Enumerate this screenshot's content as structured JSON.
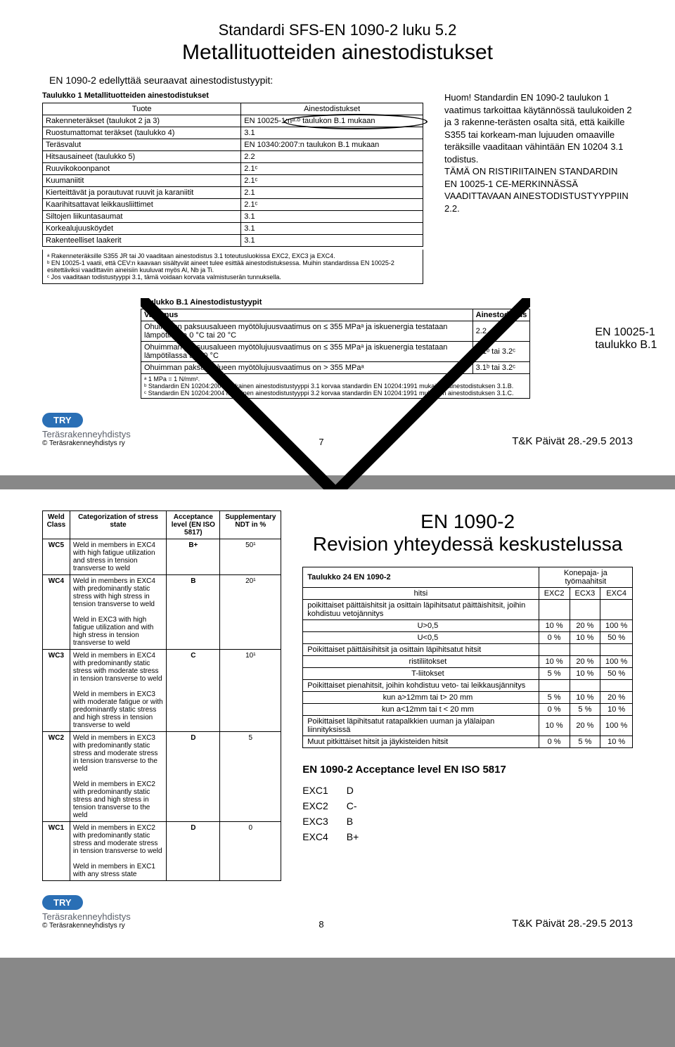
{
  "slide1": {
    "h1": "Standardi SFS-EN 1090-2 luku 5.2",
    "h2": "Metallituotteiden ainestodistukset",
    "subtitle": "EN 1090-2 edellyttää seuraavat ainestodistustyypit:",
    "t1_caption": "Taulukko 1 Metallituotteiden ainestodistukset",
    "t1_hdr1": "Tuote",
    "t1_hdr2": "Ainestodistukset",
    "t1_rows": [
      [
        "Rakenneteräkset (taulukot 2 ja 3)",
        "EN 10025-1:nᵃ·ᵇ taulukon B.1 mukaan"
      ],
      [
        "Ruostumattomat teräkset (taulukko 4)",
        "3.1"
      ],
      [
        "Teräsvalut",
        "EN 10340:2007:n taulukon B.1 mukaan"
      ],
      [
        "Hitsausaineet (taulukko 5)",
        "2.2"
      ],
      [
        "Ruuvikokoonpanot",
        "2.1ᶜ"
      ],
      [
        "Kuumaniitit",
        "2.1ᶜ"
      ],
      [
        "Kierteittävät ja porautuvat ruuvit ja karaniitit",
        "2.1"
      ],
      [
        "Kaarihitsattavat leikkausliittimet",
        "2.1ᶜ"
      ],
      [
        "Siltojen liikuntasaumat",
        "3.1"
      ],
      [
        "Korkealujuusköydet",
        "3.1"
      ],
      [
        "Rakenteelliset laakerit",
        "3.1"
      ]
    ],
    "ftnotes": "ᵃ Rakenneteräksille S355 JR tai J0 vaaditaan ainestodistus 3.1 toteutusluokissa EXC2, EXC3 ja EXC4.\nᵇ EN 10025-1 vaatii, että CEV:n kaavaan sisältyvät aineet tulee esittää ainestodistuksessa. Muihin standardissa EN 10025-2 esitettäviksi vaadittaviin aineisiin kuuluvat myös Al, Nb ja Ti.\nᶜ Jos vaaditaan todistustyyppi 3.1, tämä voidaan korvata valmistuserän tunnuksella.",
    "note1": "Huom! Standardin EN 1090-2 taulukon 1 vaatimus tarkoittaa käytännössä taulukoiden 2 ja 3 rakenne-terästen osalta sitä, että kaikille S355 tai korkeam-man lujuuden omaaville teräksille vaaditaan vähintään EN 10204 3.1 todistus.\nTÄMÄ ON RISTIRIITAINEN STANDARDIN EN 10025-1 CE-MERKINNÄSSÄ VAADITTAVAAN AINESTODISTUSTYYPPIIN 2.2.",
    "t2_caption": "Taulukko B.1 Ainestodistustyypit",
    "t2_hdr1": "Vaatimus",
    "t2_hdr2": "Ainestodistus",
    "t2_rows": [
      [
        "Ohuimman paksuusalueen myötölujuusvaatimus on ≤ 355 MPaᵃ ja iskuenergia testataan lämpötilassa 0 °C tai 20 °C",
        "2.2"
      ],
      [
        "Ohuimman paksuusalueen myötölujuusvaatimus on ≤ 355 MPaᵃ ja iskuenergia testataan lämpötilassa alle 0 °C",
        "3.1ᵇ tai 3.2ᶜ"
      ],
      [
        "Ohuimman paksuusalueen myötölujuusvaatimus on > 355 MPaᵃ",
        "3.1ᵇ tai 3.2ᶜ"
      ]
    ],
    "t2_ft": "ᵃ 1 MPa = 1 N/mm².\nᵇ Standardin EN 10204:2004 mukainen ainestodistustyyppi 3.1 korvaa standardin EN 10204:1991 mukaisen ainestodistuksen 3.1.B.\nᶜ Standardin EN 10204:2004 mukainen ainestodistustyyppi 3.2 korvaa standardin EN 10204:1991 mukaisen ainestodistuksen 3.1.C.",
    "lbl_en10025": "EN 10025-1\ntaulukko B.1",
    "page": "7",
    "date": "T&K Päivät 28.-29.5 2013",
    "try": "© Teräsrakenneyhdistys ry",
    "trybrand": "TRY",
    "trysub": "Teräsrakenneyhdistys"
  },
  "slide2": {
    "wtbl_h1": "Weld Class",
    "wtbl_h2": "Categorization of stress state",
    "wtbl_h3": "Acceptance level (EN ISO 5817)",
    "wtbl_h4": "Supplementary NDT in %",
    "wtbl": [
      [
        "WC5",
        "Weld in members in EXC4 with high fatigue utilization and stress in tension transverse to weld",
        "B+",
        "50¹"
      ],
      [
        "WC4",
        "Weld in members in EXC4 with predominantly static stress with high stress in tension transverse to weld\n\nWeld in EXC3 with high fatigue utilization and with high stress in tension transverse to weld",
        "B",
        "20¹"
      ],
      [
        "WC3",
        "Weld in members in EXC4 with predominantly static stress with moderate stress in tension transverse to weld\n\nWeld in members in EXC3 with moderate fatigue or with predominantly static stress and high stress in tension transverse to weld",
        "C",
        "10¹"
      ],
      [
        "WC2",
        "Weld in members in EXC3 with predominantly static stress and moderate stress in tension transverse to the weld\n\nWeld in members in EXC2 with predominantly static stress and high stress in tension transverse to the weld",
        "D",
        "5"
      ],
      [
        "WC1",
        "Weld in members in EXC2 with predominantly static stress and moderate stress in tension transverse to weld\n\nWeld in members in EXC1 with any stress state",
        "D",
        "0"
      ]
    ],
    "rtitle": "EN 1090-2\nRevision yhteydessä keskustelussa",
    "r24_caption": "Taulukko 24 EN 1090-2",
    "r24_hdr2": "Konepaja- ja työmaahitsit",
    "r24_subhdr": [
      "hitsi",
      "EXC2",
      "ECX3",
      "EXC4"
    ],
    "r24_rows": [
      {
        "label": "poikittaiset päittäishitsit ja osittain läpihitsatut päittäishitsit, joihin kohdistuu vetojännitys",
        "vals": [
          "",
          "",
          ""
        ],
        "bold": false,
        "span": true
      },
      {
        "label": "U>0,5",
        "vals": [
          "10 %",
          "20 %",
          "100 %"
        ],
        "indent": true
      },
      {
        "label": "U<0,5",
        "vals": [
          "0 %",
          "10 %",
          "50 %"
        ],
        "indent": true
      },
      {
        "label": "Poikittaiset päittäisihitsit ja osittain läpihitsatut hitsit",
        "vals": [
          "",
          "",
          ""
        ],
        "span": true
      },
      {
        "label": "ristiliitokset",
        "vals": [
          "10 %",
          "20 %",
          "100 %"
        ],
        "indent": true
      },
      {
        "label": "T-liitokset",
        "vals": [
          "5 %",
          "10 %",
          "50 %"
        ],
        "indent": true
      },
      {
        "label": "Poikittaiset pienahitsit, joihin kohdistuu veto- tai leikkausjännitys",
        "vals": [
          "",
          "",
          ""
        ],
        "span": true
      },
      {
        "label": "kun a>12mm tai t> 20 mm",
        "vals": [
          "5 %",
          "10 %",
          "20 %"
        ],
        "indent": true
      },
      {
        "label": "kun a<12mm tai t < 20 mm",
        "vals": [
          "0 %",
          "5 %",
          "10 %"
        ],
        "indent": true
      },
      {
        "label": "Poikittaiset läpihitsatut ratapalkkien uuman ja ylälaipan liinnityksissä",
        "vals": [
          "10 %",
          "20 %",
          "100 %"
        ]
      },
      {
        "label": "Muut pitkittäiset hitsit ja jäykisteiden hitsit",
        "vals": [
          "0 %",
          "5 %",
          "10 %"
        ]
      }
    ],
    "acpt": "EN 1090-2 Acceptance level EN ISO 5817",
    "exc": [
      [
        "EXC1",
        "D"
      ],
      [
        "EXC2",
        "C-"
      ],
      [
        "EXC3",
        "B"
      ],
      [
        "EXC4",
        "B+"
      ]
    ],
    "page": "8",
    "date": "T&K Päivät 28.-29.5 2013",
    "try": "© Teräsrakenneyhdistys ry",
    "trybrand": "TRY",
    "trysub": "Teräsrakenneyhdistys"
  }
}
